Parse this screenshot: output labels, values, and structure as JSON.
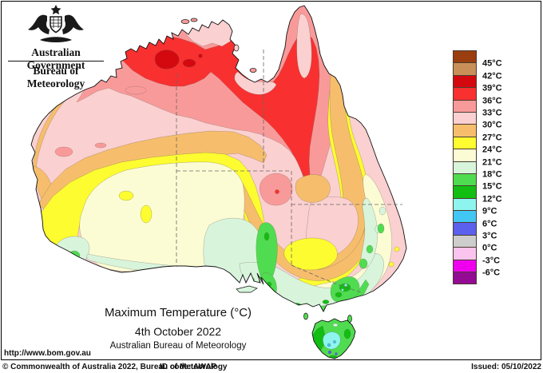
{
  "header": {
    "gov": "Australian Government",
    "bureau": "Bureau of Meteorology",
    "logo": "australian-coat-of-arms"
  },
  "caption": {
    "title": "Maximum Temperature (°C)",
    "date": "4th October 2022",
    "org": "Australian Bureau of Meteorology"
  },
  "legend": {
    "boundary_labels": [
      "45°C",
      "42°C",
      "39°C",
      "36°C",
      "33°C",
      "30°C",
      "27°C",
      "24°C",
      "21°C",
      "18°C",
      "15°C",
      "12°C",
      "9°C",
      "6°C",
      "3°C",
      "0°C",
      "-3°C",
      "-6°C"
    ],
    "bands": [
      {
        "name": "above 45",
        "hex": "#9A3D0F",
        "speckled": false
      },
      {
        "name": "42 to 45",
        "hex": "#C89058",
        "speckled": true
      },
      {
        "name": "39 to 42",
        "hex": "#D40910",
        "speckled": false
      },
      {
        "name": "36 to 39",
        "hex": "#F93030",
        "speckled": false
      },
      {
        "name": "33 to 36",
        "hex": "#F99A9A",
        "speckled": false
      },
      {
        "name": "30 to 33",
        "hex": "#FBD0D0",
        "speckled": true
      },
      {
        "name": "27 to 30",
        "hex": "#F6BE6C",
        "speckled": true
      },
      {
        "name": "24 to 27",
        "hex": "#FCFC30",
        "speckled": false
      },
      {
        "name": "21 to 24",
        "hex": "#FCFCD4",
        "speckled": false
      },
      {
        "name": "18 to 21",
        "hex": "#D8F5DC",
        "speckled": false
      },
      {
        "name": "15 to 18",
        "hex": "#50DC50",
        "speckled": false
      },
      {
        "name": "12 to 15",
        "hex": "#12BE12",
        "speckled": false
      },
      {
        "name": "9 to 12",
        "hex": "#8EF4EE",
        "speckled": false
      },
      {
        "name": "6 to 9",
        "hex": "#42C6F4",
        "speckled": true
      },
      {
        "name": "3 to 6",
        "hex": "#5B60ED",
        "speckled": true
      },
      {
        "name": "0 to 3",
        "hex": "#CDCDCD",
        "speckled": true
      },
      {
        "name": "-3 to 0",
        "hex": "#FBC4EF",
        "speckled": true
      },
      {
        "name": "-6 to -3",
        "hex": "#EE00EE",
        "speckled": false
      },
      {
        "name": "below -6",
        "hex": "#930A93",
        "speckled": false
      }
    ]
  },
  "footer": {
    "url": "http://www.bom.gov.au",
    "copyright": "© Commonwealth of Australia 2022, Bureau of Meteorology",
    "id_code": "ID code: AWAP",
    "issued": "Issued: 05/10/2022"
  },
  "map_data": {
    "type": "filled-contour temperature map",
    "region": "Australia (state borders dashed)",
    "units": "°C",
    "observations": [
      {
        "area": "Kimberley, Top End interior and NW Queensland",
        "band": "36-39"
      },
      {
        "area": "small pockets west of Gulf of Carpentaria",
        "band": "39-42"
      },
      {
        "area": "Top End / Gulf coasts and Cape York interior",
        "band": "30-33"
      },
      {
        "area": "most of northern WA, central Australia, western Qld and inland NSW wedge",
        "band": "30-33"
      },
      {
        "area": "band around the north plus central oval near SA/NT/Qld corner",
        "band": "33-36"
      },
      {
        "area": "WA west coast strip, central belt and inland Qld east band",
        "band": "27-30"
      },
      {
        "area": "ring through southern WA-SA and eastern inland NSW/Qld",
        "band": "24-27"
      },
      {
        "area": "southern WA interior and NSW coastal slopes",
        "band": "21-24"
      },
      {
        "area": "Bight coast, SA agricultural districts, Victoria, tablelands",
        "band": "18-21"
      },
      {
        "area": "SA gulfs/Flinders, southern Victoria, SE NSW, Tasmania",
        "band": "15-18"
      },
      {
        "area": "Victorian Alps and western Tasmania patches",
        "band": "12-15"
      },
      {
        "area": "central Tasmania highlands",
        "band": "9-12"
      },
      {
        "area": "tiny Tasmanian peaks",
        "band": "3-9"
      }
    ]
  }
}
